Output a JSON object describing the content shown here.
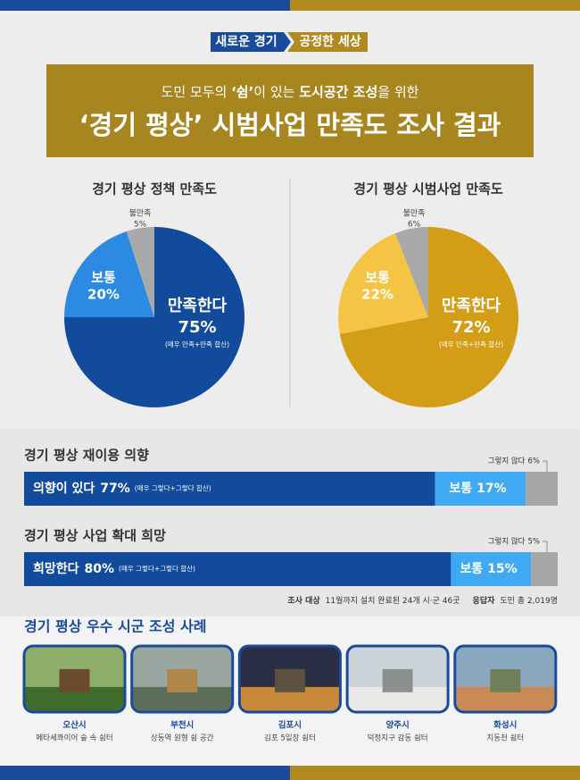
{
  "header": {
    "tag_left": "새로운 경기",
    "tag_right": "공정한 세상",
    "subtitle_parts": [
      "도민 모두의 ",
      "‘쉼’",
      "이 있는 ",
      "도시공간 조성",
      "을 위한"
    ],
    "title": "‘경기 평상’ 시범사업 만족도 조사 결과"
  },
  "chart_data": [
    {
      "type": "pie",
      "title": "경기 평상 정책 만족도",
      "categories": [
        "만족한다",
        "보통",
        "불만족"
      ],
      "values": [
        75,
        20,
        5
      ],
      "value_labels": [
        "75%",
        "20%",
        "5%"
      ],
      "colors": [
        "#124b9c",
        "#2d8ae2",
        "#a9a9a9"
      ],
      "note": "(매우 만족+만족 합산)"
    },
    {
      "type": "pie",
      "title": "경기 평상 시범사업 만족도",
      "categories": [
        "만족한다",
        "보통",
        "불만족"
      ],
      "values": [
        72,
        22,
        6
      ],
      "value_labels": [
        "72%",
        "22%",
        "6%"
      ],
      "colors": [
        "#d39e16",
        "#f6c444",
        "#a9a9a9"
      ],
      "note": "(매우 만족+만족 합산)"
    },
    {
      "type": "stacked-bar",
      "title": "경기 평상 재이용 의향",
      "xlim": [
        0,
        100
      ],
      "note": "(매우 그렇다+그렇다 합산)",
      "series": [
        {
          "name": "의향이 있다",
          "color": "#124b9c",
          "values": [
            77
          ],
          "value_labels": [
            "77%"
          ]
        },
        {
          "name": "보통",
          "color": "#3faaf3",
          "values": [
            17
          ],
          "value_labels": [
            "17%"
          ]
        },
        {
          "name": "그렇지 않다",
          "color": "#a6a6a6",
          "values": [
            6
          ],
          "value_labels": [
            "6%"
          ]
        }
      ]
    },
    {
      "type": "stacked-bar",
      "title": "경기 평상 사업 확대 희망",
      "xlim": [
        0,
        100
      ],
      "note": "(매우 그렇다+그렇다 합산)",
      "series": [
        {
          "name": "희망한다",
          "color": "#124b9c",
          "values": [
            80
          ],
          "value_labels": [
            "80%"
          ]
        },
        {
          "name": "보통",
          "color": "#3faaf3",
          "values": [
            15
          ],
          "value_labels": [
            "15%"
          ]
        },
        {
          "name": "그렇지 않다",
          "color": "#a6a6a6",
          "values": [
            5
          ],
          "value_labels": [
            "5%"
          ]
        }
      ]
    }
  ],
  "survey": {
    "target_label": "조사 대상",
    "target": "11월까지 설치 완료된 24개 시·군 46곳",
    "respondent_label": "응답자",
    "respondents": "도민 총 2,019명"
  },
  "cases": {
    "title": "경기 평상 우수 시군 조성 사례",
    "items": [
      {
        "city": "오산시",
        "place": "메타세콰이어 숲 속 쉼터"
      },
      {
        "city": "부천시",
        "place": "상동역 원형 쉼 공간"
      },
      {
        "city": "김포시",
        "place": "김포 5일장 쉼터"
      },
      {
        "city": "양주시",
        "place": "덕정지구 감동 쉼터"
      },
      {
        "city": "화성시",
        "place": "치동천 쉼터"
      }
    ]
  }
}
